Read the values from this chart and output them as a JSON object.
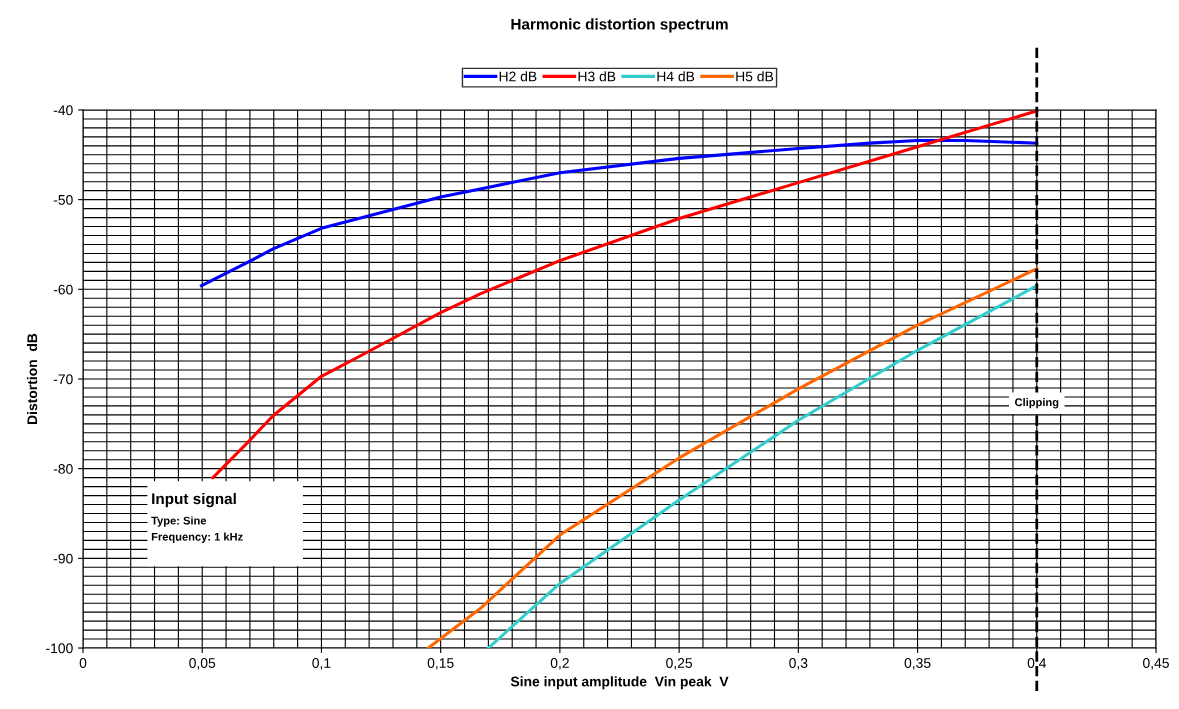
{
  "chart_data": {
    "type": "line",
    "title": "Harmonic distortion spectrum",
    "xlabel": "Sine input amplitude  Vin peak  V",
    "ylabel": "Distortion  dB",
    "xlim": [
      0,
      0.45
    ],
    "ylim": [
      -100,
      -40
    ],
    "xticks": [
      0,
      {
        "value": 0.05,
        "label": "0,05"
      },
      {
        "value": 0.1,
        "label": "0,1"
      },
      {
        "value": 0.15,
        "label": "0,15"
      },
      {
        "value": 0.2,
        "label": "0,2"
      },
      {
        "value": 0.25,
        "label": "0,25"
      },
      {
        "value": 0.3,
        "label": "0,3"
      },
      {
        "value": 0.35,
        "label": "0,35"
      },
      {
        "value": 0.4,
        "label": "0,4"
      },
      {
        "value": 0.45,
        "label": "0,45"
      }
    ],
    "yticks": [
      -100,
      -90,
      -80,
      -70,
      -60,
      -50,
      -40
    ],
    "grid": true,
    "legend": "top",
    "line_style": "solid",
    "marker": "none",
    "series": [
      {
        "name": "H2 dB",
        "color": "#0000ff",
        "x": [
          0.0497,
          0.069,
          0.0797,
          0.1,
          0.15,
          0.1666,
          0.2,
          0.25,
          0.3,
          0.33,
          0.35,
          0.37,
          0.4
        ],
        "values": [
          -59.6,
          -57.0,
          -55.5,
          -53.2,
          -49.7,
          -48.8,
          -47.0,
          -45.4,
          -44.3,
          -43.7,
          -43.4,
          -43.4,
          -43.7
        ]
      },
      {
        "name": "H3 dB",
        "color": "#ff0000",
        "x": [
          0.0545,
          0.069,
          0.0797,
          0.1,
          0.1186,
          0.15,
          0.1666,
          0.2,
          0.25,
          0.3,
          0.35,
          0.4
        ],
        "values": [
          -81.0,
          -77.1,
          -74.1,
          -69.7,
          -67.1,
          -62.6,
          -60.5,
          -56.8,
          -52.1,
          -48.1,
          -44.1,
          -40.1
        ]
      },
      {
        "name": "H4 dB",
        "color": "#33cccc",
        "x": [
          0.17,
          0.2,
          0.25,
          0.3,
          0.35,
          0.4
        ],
        "values": [
          -100,
          -92.8,
          -83.5,
          -74.6,
          -66.8,
          -59.6
        ]
      },
      {
        "name": "H5 dB",
        "color": "#ff6600",
        "x": [
          0.1448,
          0.1666,
          0.2,
          0.25,
          0.3,
          0.35,
          0.4
        ],
        "values": [
          -100,
          -95.6,
          -87.4,
          -78.8,
          -71.1,
          -64.0,
          -57.7
        ]
      }
    ],
    "ref_lines": [
      {
        "axis": "x",
        "value": 0.4,
        "label": "Clipping",
        "color": "#000000",
        "line_style": "dashed"
      }
    ],
    "annotations": [
      "Input signal",
      "Type: Sine",
      "Frequency: 1 kHz"
    ]
  }
}
